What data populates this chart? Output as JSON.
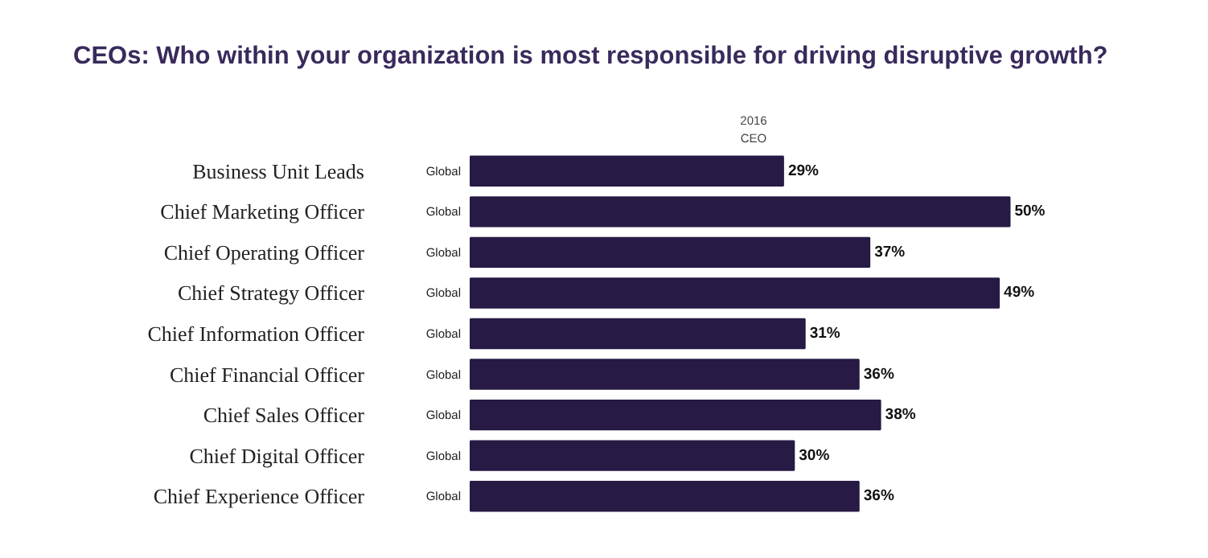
{
  "chart_data": {
    "type": "bar",
    "orientation": "horizontal",
    "title": "CEOs: Who within your organization is most responsible for driving disruptive growth?",
    "xlabel": "2016\nCEO",
    "categories": [
      "Business Unit Leads",
      "Chief Marketing Officer",
      "Chief Operating Officer",
      "Chief Strategy Officer",
      "Chief Information Officer",
      "Chief Financial Officer",
      "Chief Sales Officer",
      "Chief Digital Officer",
      "Chief Experience Officer"
    ],
    "values": [
      29,
      50,
      37,
      49,
      31,
      36,
      38,
      30,
      36
    ],
    "value_labels": [
      "29%",
      "50%",
      "37%",
      "49%",
      "31%",
      "36%",
      "38%",
      "30%",
      "36%"
    ],
    "color": "#271a45",
    "annotations": [
      "Global",
      "Global",
      "Global",
      "Global",
      "Global",
      "Global",
      "Global",
      "Global",
      "Global"
    ],
    "grid": false
  }
}
